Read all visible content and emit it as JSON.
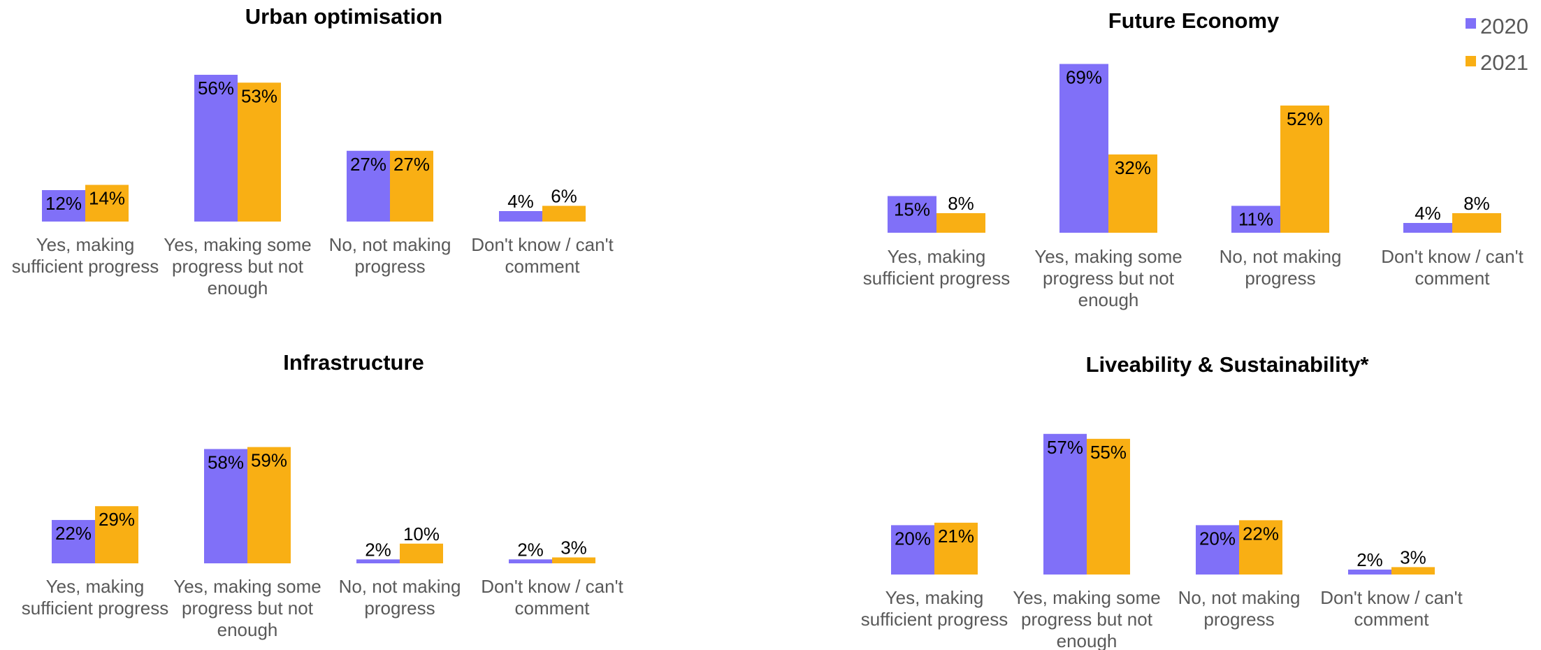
{
  "legend": {
    "position": "top-right",
    "entries": [
      {
        "label": "2020",
        "color": "#8070F8"
      },
      {
        "label": "2021",
        "color": "#F9AF14"
      }
    ]
  },
  "chart_data": [
    {
      "type": "bar",
      "title": "Urban optimisation",
      "categories": [
        [
          "Yes, making",
          "sufficient progress"
        ],
        [
          "Yes, making some",
          "progress but not",
          "enough"
        ],
        [
          "No, not making",
          "progress"
        ],
        [
          "Don't know / can't",
          "comment"
        ]
      ],
      "series": [
        {
          "name": "2020",
          "values": [
            12,
            56,
            27,
            4
          ],
          "labels": [
            "12%",
            "56%",
            "27%",
            "4%"
          ]
        },
        {
          "name": "2021",
          "values": [
            14,
            53,
            27,
            6
          ],
          "labels": [
            "14%",
            "53%",
            "27%",
            "6%"
          ]
        }
      ],
      "ylim": [
        0,
        100
      ],
      "grid": false
    },
    {
      "type": "bar",
      "title": "Future Economy",
      "categories": [
        [
          "Yes, making",
          "sufficient progress"
        ],
        [
          "Yes, making some",
          "progress but not",
          "enough"
        ],
        [
          "No, not making",
          "progress"
        ],
        [
          "Don't know / can't",
          "comment"
        ]
      ],
      "series": [
        {
          "name": "2020",
          "values": [
            15,
            69,
            11,
            4
          ],
          "labels": [
            "15%",
            "69%",
            "11%",
            "4%"
          ]
        },
        {
          "name": "2021",
          "values": [
            8,
            32,
            52,
            8
          ],
          "labels": [
            "8%",
            "32%",
            "52%",
            "8%"
          ]
        }
      ],
      "ylim": [
        0,
        100
      ],
      "grid": false
    },
    {
      "type": "bar",
      "title": "Infrastructure",
      "categories": [
        [
          "Yes, making",
          "sufficient progress"
        ],
        [
          "Yes, making some",
          "progress but not",
          "enough"
        ],
        [
          "No, not making",
          "progress"
        ],
        [
          "Don't know / can't",
          "comment"
        ]
      ],
      "series": [
        {
          "name": "2020",
          "values": [
            22,
            58,
            2,
            2
          ],
          "labels": [
            "22%",
            "58%",
            "2%",
            "2%"
          ]
        },
        {
          "name": "2021",
          "values": [
            29,
            59,
            10,
            3
          ],
          "labels": [
            "29%",
            "59%",
            "10%",
            "3%"
          ]
        }
      ],
      "ylim": [
        0,
        100
      ],
      "grid": false
    },
    {
      "type": "bar",
      "title": "Liveability & Sustainability*",
      "categories": [
        [
          "Yes, making",
          "sufficient progress"
        ],
        [
          "Yes, making some",
          "progress but not",
          "enough"
        ],
        [
          "No, not making",
          "progress"
        ],
        [
          "Don't know / can't",
          "comment"
        ]
      ],
      "series": [
        {
          "name": "2020",
          "values": [
            20,
            57,
            20,
            2
          ],
          "labels": [
            "20%",
            "57%",
            "20%",
            "2%"
          ]
        },
        {
          "name": "2021",
          "values": [
            21,
            55,
            22,
            3
          ],
          "labels": [
            "21%",
            "55%",
            "22%",
            "3%"
          ]
        }
      ],
      "ylim": [
        0,
        100
      ],
      "grid": false
    }
  ]
}
